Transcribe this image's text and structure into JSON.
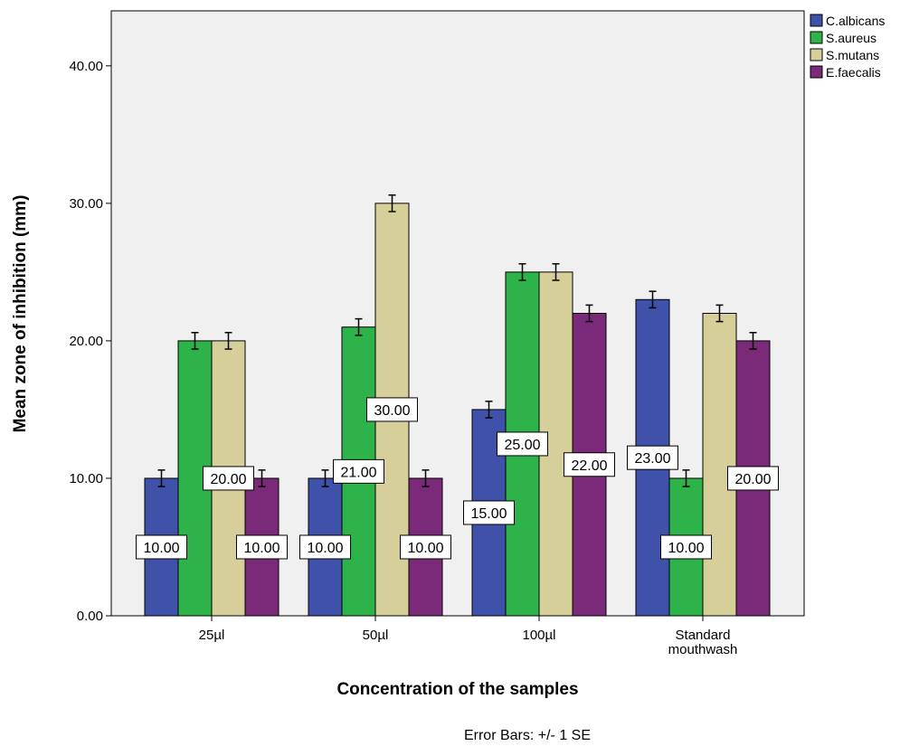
{
  "chart_data": {
    "type": "bar",
    "categories": [
      [
        "25µl"
      ],
      [
        "50µl"
      ],
      [
        "100µl"
      ],
      [
        "Standard",
        "mouthwash"
      ]
    ],
    "series": [
      {
        "name": "C.albicans",
        "color": "#3f51a8",
        "values": [
          10,
          10,
          15,
          23
        ],
        "labels": [
          "10.00",
          "10.00",
          "15.00",
          "23.00"
        ]
      },
      {
        "name": "S.aureus",
        "color": "#2eb34a",
        "values": [
          20,
          21,
          25,
          10
        ],
        "labels": [
          "",
          "21.00",
          "25.00",
          "10.00"
        ]
      },
      {
        "name": "S.mutans",
        "color": "#d6cf9a",
        "values": [
          20,
          30,
          25,
          22
        ],
        "labels": [
          "20.00",
          "30.00",
          "",
          ""
        ]
      },
      {
        "name": "E.faecalis",
        "color": "#7b2a7a",
        "values": [
          10,
          10,
          22,
          20
        ],
        "labels": [
          "10.00",
          "10.00",
          "22.00",
          "20.00"
        ]
      }
    ],
    "error_se": 0.6,
    "xlabel": "Concentration of the samples",
    "ylabel": "Mean zone of inhibition (mm)",
    "ylim": [
      0,
      44
    ],
    "yticks": [
      0,
      10,
      20,
      30,
      40
    ],
    "ytick_labels": [
      "0.00",
      "10.00",
      "20.00",
      "30.00",
      "40.00"
    ],
    "grid": false,
    "legend_position": "top-right",
    "plot_background": "#f0f0f0",
    "footnote": "Error Bars: +/- 1 SE"
  }
}
